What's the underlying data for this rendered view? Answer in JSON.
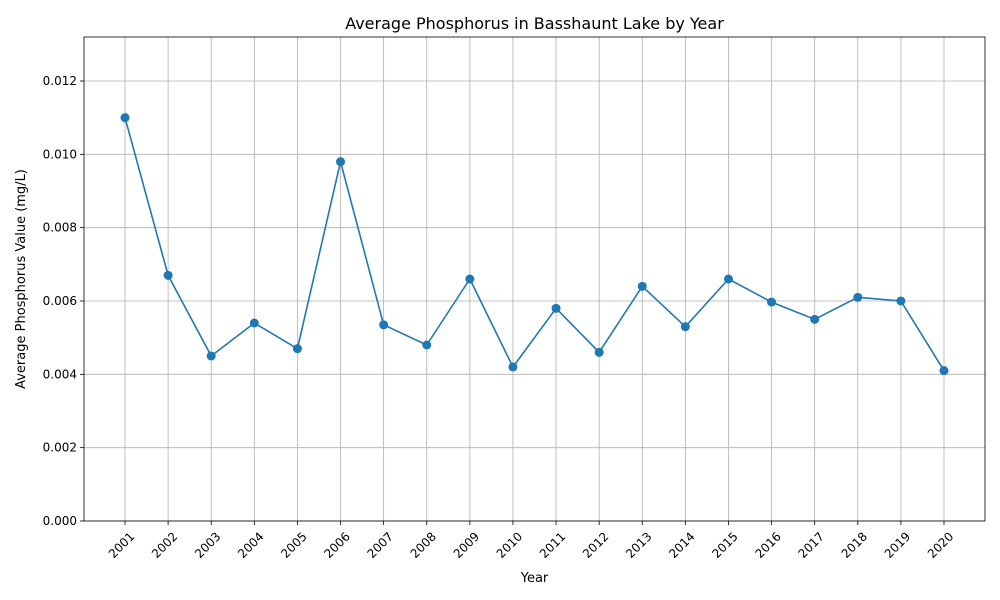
{
  "chart_data": {
    "type": "line",
    "title": "Average Phosphorus in Basshaunt Lake by Year",
    "xlabel": "Year",
    "ylabel": "Average Phosphorus Value (mg/L)",
    "categories": [
      "2001",
      "2002",
      "2003",
      "2004",
      "2005",
      "2006",
      "2007",
      "2008",
      "2009",
      "2010",
      "2011",
      "2012",
      "2013",
      "2014",
      "2015",
      "2016",
      "2017",
      "2018",
      "2019",
      "2020"
    ],
    "series": [
      {
        "values": [
          0.011,
          0.0067,
          0.0045,
          0.0054,
          0.0047,
          0.0098,
          0.00535,
          0.0048,
          0.0066,
          0.0042,
          0.0058,
          0.0046,
          0.0064,
          0.0053,
          0.0066,
          0.00597,
          0.0055,
          0.0061,
          0.006,
          0.0041
        ],
        "color": "#1f77b4",
        "marker": "circle"
      }
    ],
    "ylim": [
      0,
      0.0132
    ],
    "yticks": [
      0.0,
      0.002,
      0.004,
      0.006,
      0.008,
      0.01,
      0.012
    ],
    "ytick_labels": [
      "0.000",
      "0.002",
      "0.004",
      "0.006",
      "0.008",
      "0.010",
      "0.012"
    ],
    "grid": true,
    "xtick_rotation": 45
  }
}
